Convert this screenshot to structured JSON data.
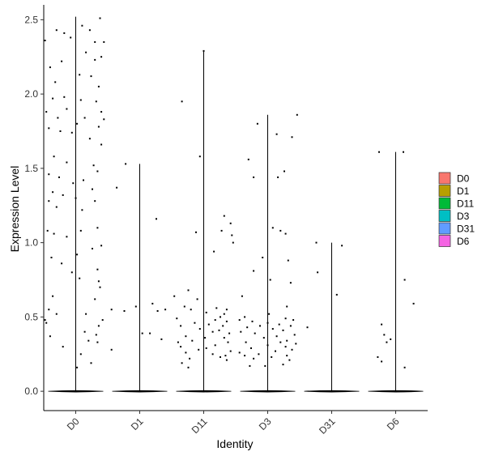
{
  "chart_data": {
    "type": "violin-jitter",
    "xlabel": "Identity",
    "ylabel": "Expression Level",
    "categories": [
      "D0",
      "D1",
      "D11",
      "D3",
      "D31",
      "D6"
    ],
    "yticks": [
      "0.0",
      "0.5",
      "1.0",
      "1.5",
      "2.0",
      "2.5"
    ],
    "ylim": [
      -0.13,
      2.6
    ],
    "grid": false,
    "legend_position": "right",
    "legend": [
      {
        "label": "D0",
        "color": "#F8766D"
      },
      {
        "label": "D1",
        "color": "#B79F00"
      },
      {
        "label": "D11",
        "color": "#00BA38"
      },
      {
        "label": "D3",
        "color": "#00BFC4"
      },
      {
        "label": "D31",
        "color": "#619CFF"
      },
      {
        "label": "D6",
        "color": "#F564E3"
      }
    ],
    "series": [
      {
        "category": "D0",
        "max": 2.52,
        "points": [
          [
            -0.48,
            2.36
          ],
          [
            -0.3,
            2.43
          ],
          [
            -0.18,
            2.41
          ],
          [
            -0.08,
            2.38
          ],
          [
            0.1,
            2.46
          ],
          [
            0.22,
            2.43
          ],
          [
            0.3,
            2.35
          ],
          [
            0.44,
            2.35
          ],
          [
            0.38,
            2.51
          ],
          [
            -0.4,
            2.18
          ],
          [
            -0.22,
            2.22
          ],
          [
            0.16,
            2.28
          ],
          [
            0.3,
            2.23
          ],
          [
            0.4,
            2.25
          ],
          [
            -0.32,
            2.08
          ],
          [
            0.06,
            2.13
          ],
          [
            0.24,
            2.12
          ],
          [
            0.36,
            2.05
          ],
          [
            -0.36,
            1.97
          ],
          [
            -0.18,
            1.98
          ],
          [
            0.08,
            1.96
          ],
          [
            0.32,
            1.95
          ],
          [
            -0.14,
            1.9
          ],
          [
            0.4,
            1.88
          ],
          [
            -0.46,
            1.88
          ],
          [
            -0.28,
            1.84
          ],
          [
            0.14,
            1.84
          ],
          [
            -0.42,
            1.77
          ],
          [
            -0.24,
            1.75
          ],
          [
            0.02,
            1.8
          ],
          [
            0.36,
            1.78
          ],
          [
            0.44,
            1.83
          ],
          [
            -0.06,
            1.74
          ],
          [
            0.22,
            1.7
          ],
          [
            0.4,
            1.66
          ],
          [
            -0.34,
            1.58
          ],
          [
            -0.14,
            1.54
          ],
          [
            0.28,
            1.52
          ],
          [
            0.34,
            1.48
          ],
          [
            -0.42,
            1.46
          ],
          [
            -0.26,
            1.44
          ],
          [
            0.12,
            1.42
          ],
          [
            -0.04,
            1.4
          ],
          [
            -0.36,
            1.34
          ],
          [
            -0.2,
            1.32
          ],
          [
            0.0,
            1.3
          ],
          [
            0.26,
            1.36
          ],
          [
            -0.42,
            1.28
          ],
          [
            0.3,
            1.28
          ],
          [
            -0.3,
            1.24
          ],
          [
            0.1,
            1.22
          ],
          [
            -0.44,
            1.08
          ],
          [
            -0.34,
            1.06
          ],
          [
            -0.14,
            1.04
          ],
          [
            0.08,
            1.08
          ],
          [
            0.34,
            1.1
          ],
          [
            0.4,
            0.98
          ],
          [
            -0.38,
            0.9
          ],
          [
            0.02,
            0.92
          ],
          [
            0.26,
            0.96
          ],
          [
            -0.22,
            0.86
          ],
          [
            0.34,
            0.82
          ],
          [
            -0.06,
            0.8
          ],
          [
            0.06,
            0.76
          ],
          [
            0.36,
            0.74
          ],
          [
            0.38,
            0.7
          ],
          [
            -0.36,
            0.64
          ],
          [
            0.3,
            0.62
          ],
          [
            -0.42,
            0.55
          ],
          [
            -0.3,
            0.52
          ],
          [
            0.16,
            0.52
          ],
          [
            0.42,
            0.48
          ],
          [
            -0.48,
            0.48
          ],
          [
            0.36,
            0.44
          ],
          [
            -0.46,
            0.46
          ],
          [
            0.14,
            0.4
          ],
          [
            0.32,
            0.38
          ],
          [
            -0.4,
            0.37
          ],
          [
            0.2,
            0.34
          ],
          [
            0.34,
            0.33
          ],
          [
            -0.2,
            0.3
          ],
          [
            0.08,
            0.25
          ],
          [
            0.24,
            0.19
          ],
          [
            0.02,
            0.16
          ]
        ]
      },
      {
        "category": "D1",
        "max": 1.53,
        "points": [
          [
            -0.22,
            1.53
          ],
          [
            -0.36,
            1.37
          ],
          [
            0.26,
            1.16
          ],
          [
            -0.06,
            0.57
          ],
          [
            0.2,
            0.59
          ],
          [
            -0.44,
            0.55
          ],
          [
            0.4,
            0.55
          ],
          [
            0.28,
            0.54
          ],
          [
            -0.24,
            0.54
          ],
          [
            0.16,
            0.39
          ],
          [
            0.04,
            0.39
          ],
          [
            0.34,
            0.35
          ],
          [
            -0.44,
            0.28
          ]
        ]
      },
      {
        "category": "D11",
        "max": 2.29,
        "points": [
          [
            -0.34,
            1.95
          ],
          [
            0.0,
            2.29
          ],
          [
            -0.06,
            1.58
          ],
          [
            0.32,
            1.18
          ],
          [
            0.42,
            1.13
          ],
          [
            0.28,
            1.08
          ],
          [
            -0.12,
            1.07
          ],
          [
            0.44,
            1.05
          ],
          [
            0.46,
            1.0
          ],
          [
            0.16,
            0.94
          ],
          [
            -0.24,
            0.68
          ],
          [
            -0.46,
            0.64
          ],
          [
            -0.1,
            0.62
          ],
          [
            -0.3,
            0.57
          ],
          [
            -0.2,
            0.55
          ],
          [
            0.2,
            0.56
          ],
          [
            0.36,
            0.55
          ],
          [
            0.04,
            0.53
          ],
          [
            0.32,
            0.52
          ],
          [
            0.26,
            0.5
          ],
          [
            -0.42,
            0.49
          ],
          [
            0.18,
            0.48
          ],
          [
            0.36,
            0.47
          ],
          [
            -0.14,
            0.46
          ],
          [
            0.08,
            0.45
          ],
          [
            0.3,
            0.44
          ],
          [
            -0.36,
            0.44
          ],
          [
            -0.06,
            0.42
          ],
          [
            0.24,
            0.41
          ],
          [
            0.14,
            0.4
          ],
          [
            0.4,
            0.39
          ],
          [
            -0.28,
            0.37
          ],
          [
            0.02,
            0.36
          ],
          [
            0.32,
            0.36
          ],
          [
            -0.18,
            0.34
          ],
          [
            0.38,
            0.33
          ],
          [
            -0.4,
            0.33
          ],
          [
            0.18,
            0.31
          ],
          [
            -0.36,
            0.3
          ],
          [
            0.04,
            0.29
          ],
          [
            -0.08,
            0.28
          ],
          [
            0.42,
            0.27
          ],
          [
            -0.28,
            0.26
          ],
          [
            0.14,
            0.25
          ],
          [
            0.34,
            0.24
          ],
          [
            0.26,
            0.23
          ],
          [
            -0.22,
            0.22
          ],
          [
            0.36,
            0.21
          ],
          [
            -0.34,
            0.19
          ],
          [
            -0.24,
            0.16
          ]
        ]
      },
      {
        "category": "D3",
        "max": 1.86,
        "points": [
          [
            0.46,
            1.86
          ],
          [
            -0.16,
            1.8
          ],
          [
            0.38,
            1.71
          ],
          [
            0.14,
            1.73
          ],
          [
            -0.3,
            1.56
          ],
          [
            0.26,
            1.48
          ],
          [
            0.16,
            1.44
          ],
          [
            -0.22,
            1.44
          ],
          [
            0.08,
            1.1
          ],
          [
            0.2,
            1.08
          ],
          [
            0.28,
            1.06
          ],
          [
            -0.08,
            0.9
          ],
          [
            0.32,
            0.88
          ],
          [
            -0.22,
            0.81
          ],
          [
            0.04,
            0.75
          ],
          [
            0.36,
            0.73
          ],
          [
            -0.4,
            0.64
          ],
          [
            0.3,
            0.57
          ],
          [
            0.02,
            0.52
          ],
          [
            -0.36,
            0.5
          ],
          [
            0.28,
            0.49
          ],
          [
            0.4,
            0.48
          ],
          [
            -0.44,
            0.48
          ],
          [
            -0.24,
            0.47
          ],
          [
            0.0,
            0.46
          ],
          [
            0.18,
            0.45
          ],
          [
            -0.12,
            0.44
          ],
          [
            0.36,
            0.44
          ],
          [
            -0.32,
            0.43
          ],
          [
            0.08,
            0.42
          ],
          [
            0.24,
            0.41
          ],
          [
            -0.42,
            0.4
          ],
          [
            -0.2,
            0.39
          ],
          [
            0.42,
            0.38
          ],
          [
            0.14,
            0.37
          ],
          [
            -0.06,
            0.36
          ],
          [
            0.3,
            0.34
          ],
          [
            -0.34,
            0.33
          ],
          [
            0.2,
            0.33
          ],
          [
            0.44,
            0.32
          ],
          [
            0.0,
            0.31
          ],
          [
            0.28,
            0.3
          ],
          [
            -0.26,
            0.29
          ],
          [
            0.38,
            0.28
          ],
          [
            0.12,
            0.27
          ],
          [
            -0.44,
            0.26
          ],
          [
            -0.14,
            0.25
          ],
          [
            0.3,
            0.24
          ],
          [
            -0.36,
            0.24
          ],
          [
            0.06,
            0.23
          ],
          [
            -0.22,
            0.22
          ],
          [
            0.34,
            0.21
          ],
          [
            0.24,
            0.18
          ],
          [
            -0.04,
            0.17
          ],
          [
            -0.28,
            0.17
          ]
        ]
      },
      {
        "category": "D31",
        "max": 1.0,
        "points": [
          [
            -0.24,
            1.0
          ],
          [
            0.16,
            0.98
          ],
          [
            -0.22,
            0.8
          ],
          [
            0.08,
            0.65
          ],
          [
            -0.38,
            0.43
          ]
        ]
      },
      {
        "category": "D6",
        "max": 1.61,
        "points": [
          [
            0.12,
            1.61
          ],
          [
            -0.26,
            1.61
          ],
          [
            0.14,
            0.75
          ],
          [
            0.28,
            0.59
          ],
          [
            -0.22,
            0.45
          ],
          [
            -0.18,
            0.38
          ],
          [
            -0.08,
            0.35
          ],
          [
            -0.14,
            0.33
          ],
          [
            -0.28,
            0.23
          ],
          [
            -0.22,
            0.2
          ],
          [
            0.14,
            0.16
          ]
        ]
      }
    ]
  }
}
